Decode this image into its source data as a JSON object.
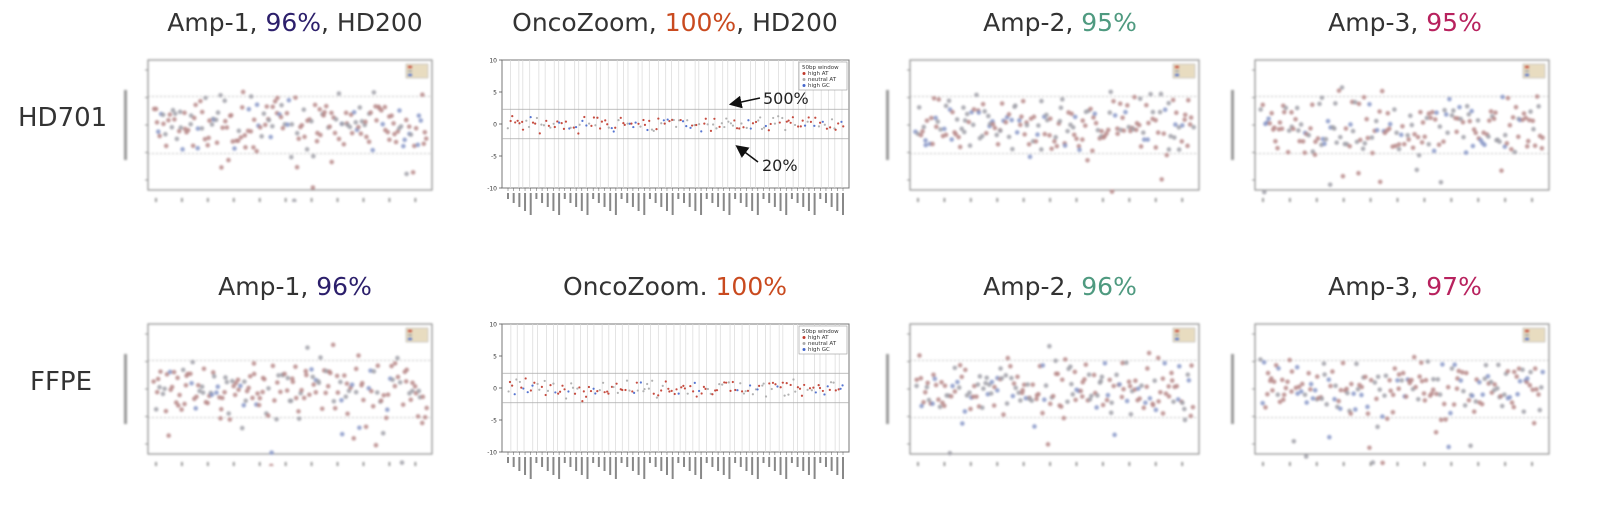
{
  "row_labels": [
    "HD701",
    "FFPE"
  ],
  "colors": {
    "amp1_pct": "#2c1f6b",
    "oncozoom_pct": "#c94a1f",
    "amp2_pct": "#4f9a80",
    "amp3_pct": "#b8225e",
    "high_at": "#c0392b",
    "neutral_at": "#aaaaaa",
    "high_gc": "#4466cc"
  },
  "titles": [
    {
      "prefix": "Amp-1, ",
      "pct": "96%",
      "suffix": ", HD200"
    },
    {
      "prefix": "OncoZoom, ",
      "pct": "100%",
      "suffix": ", HD200"
    },
    {
      "prefix": "Amp-2, ",
      "pct": "95%",
      "suffix": ""
    },
    {
      "prefix": "Amp-3, ",
      "pct": "95%",
      "suffix": ""
    },
    {
      "prefix": "Amp-1, ",
      "pct": "96%",
      "suffix": ""
    },
    {
      "prefix": "OncoZoom. ",
      "pct": "100%",
      "suffix": ""
    },
    {
      "prefix": "Amp-2, ",
      "pct": "96%",
      "suffix": ""
    },
    {
      "prefix": "Amp-3, ",
      "pct": "97%",
      "suffix": ""
    }
  ],
  "annotations": {
    "upper": "500%",
    "lower": "20%"
  },
  "chart_data": [
    {
      "type": "scatter",
      "legend_placement": "top-right",
      "reference_lines": [
        2,
        -2
      ],
      "series_names": [],
      "blurred": true
    },
    {
      "type": "scatter",
      "ylim": [
        -10,
        10
      ],
      "yticks": [
        "10",
        "5",
        "0",
        "-5",
        "-10"
      ],
      "legend_title": "50bp window",
      "legend_placement": "top-right",
      "reference_lines": [
        2.3,
        -2.3
      ],
      "series": [
        {
          "name": "high AT",
          "color_key": "high_at"
        },
        {
          "name": "neutral AT",
          "color_key": "neutral_at"
        },
        {
          "name": "high GC",
          "color_key": "high_gc"
        }
      ],
      "spread": 0.6
    },
    {
      "type": "scatter",
      "legend_placement": "top-right",
      "reference_lines": [
        2,
        -2
      ],
      "blurred": true
    },
    {
      "type": "scatter",
      "legend_placement": "top-right",
      "reference_lines": [
        2,
        -2
      ],
      "blurred": true
    },
    {
      "type": "scatter",
      "legend_placement": "top-right",
      "reference_lines": [
        2,
        -2
      ],
      "blurred": true
    },
    {
      "type": "scatter",
      "ylim": [
        -10,
        10
      ],
      "yticks": [
        "10",
        "5",
        "0",
        "-5",
        "-10"
      ],
      "legend_title": "50bp window",
      "legend_placement": "top-right",
      "reference_lines": [
        2.3,
        -2.3
      ],
      "series": [
        {
          "name": "high AT",
          "color_key": "high_at"
        },
        {
          "name": "neutral AT",
          "color_key": "neutral_at"
        },
        {
          "name": "high GC",
          "color_key": "high_gc"
        }
      ],
      "spread": 0.7
    },
    {
      "type": "scatter",
      "legend_placement": "top-right",
      "reference_lines": [
        2,
        -2
      ],
      "blurred": true
    },
    {
      "type": "scatter",
      "legend_placement": "top-right",
      "reference_lines": [
        2,
        -2
      ],
      "blurred": true
    }
  ]
}
